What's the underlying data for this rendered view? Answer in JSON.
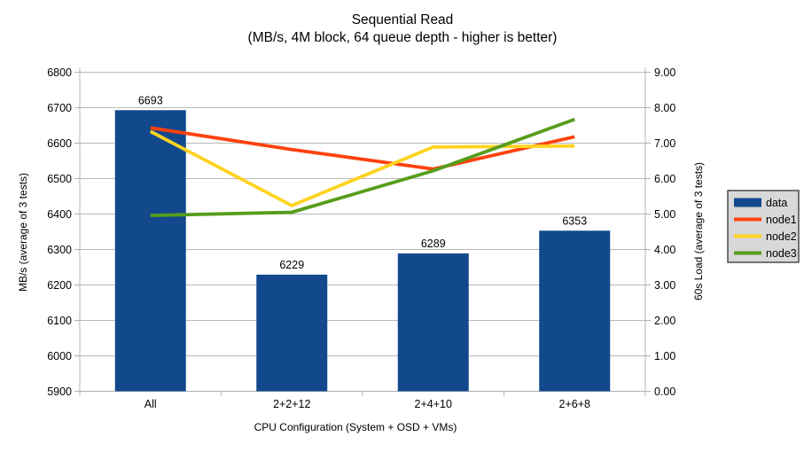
{
  "title": {
    "line1": "Sequential Read",
    "line2": "(MB/s, 4M block, 64 queue depth - higher is better)"
  },
  "chart_data": {
    "type": "combo-bar-line",
    "categories": [
      "All",
      "2+2+12",
      "2+4+10",
      "2+6+8"
    ],
    "xlabel": "CPU Configuration (System + OSD + VMs)",
    "grid": true,
    "legend_position": "right",
    "left_axis": {
      "label": "MB/s (average of 3 tests)",
      "min": 5900,
      "max": 6800,
      "step": 100
    },
    "right_axis": {
      "label": "60s Load (average of 3 tests)",
      "min": 0.0,
      "max": 9.0,
      "step": 1.0,
      "decimals": 2
    },
    "bar_series": {
      "name": "data",
      "axis": "left",
      "color": "#12498d",
      "values": [
        6693,
        6229,
        6289,
        6353
      ],
      "labels": [
        "6693",
        "6229",
        "6289",
        "6353"
      ]
    },
    "line_series": [
      {
        "name": "node1",
        "axis": "right",
        "color": "#ff420e",
        "values": [
          7.43,
          6.82,
          6.27,
          7.18
        ]
      },
      {
        "name": "node2",
        "axis": "right",
        "color": "#ffd320",
        "values": [
          7.33,
          5.24,
          6.89,
          6.92
        ]
      },
      {
        "name": "node3",
        "axis": "right",
        "color": "#579d1c",
        "values": [
          4.96,
          5.05,
          6.22,
          7.67
        ]
      }
    ],
    "legend": [
      {
        "label": "data",
        "swatch": "box",
        "color": "#12498d"
      },
      {
        "label": "node1",
        "swatch": "line",
        "color": "#ff420e"
      },
      {
        "label": "node2",
        "swatch": "line",
        "color": "#ffd320"
      },
      {
        "label": "node3",
        "swatch": "line",
        "color": "#579d1c"
      }
    ],
    "colors": {
      "grid": "#b9b9b9",
      "axis": "#b0b0b0",
      "text": "#000000",
      "legend_fill": "#d8d8d8",
      "legend_border": "#4a4a4a",
      "background": "#ffffff"
    }
  }
}
